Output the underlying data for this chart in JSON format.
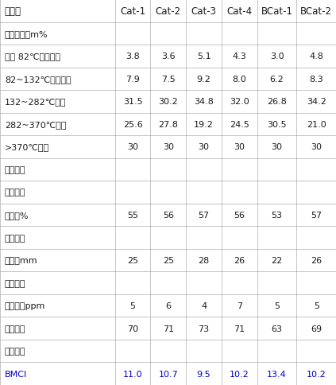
{
  "columns": [
    "催化剂",
    "Cat-1",
    "Cat-2",
    "Cat-3",
    "Cat-4",
    "BCat-1",
    "BCat-2"
  ],
  "rows": [
    {
      "label": "产品分布，m%",
      "values": [
        "",
        "",
        "",
        "",
        "",
        ""
      ],
      "section": true
    },
    {
      "label": "小于 82℃轻石脑油",
      "values": [
        "3.8",
        "3.6",
        "5.1",
        "4.3",
        "3.0",
        "4.8"
      ],
      "section": false
    },
    {
      "label": "82~132℃重石脑油",
      "values": [
        "7.9",
        "7.5",
        "9.2",
        "8.0",
        "6.2",
        "8.3"
      ],
      "section": false
    },
    {
      "label": "132~282℃航煤",
      "values": [
        "31.5",
        "30.2",
        "34.8",
        "32.0",
        "26.8",
        "34.2"
      ],
      "section": false
    },
    {
      "label": "282~370℃柴油",
      "values": [
        "25.6",
        "27.8",
        "19.2",
        "24.5",
        "30.5",
        "21.0"
      ],
      "section": false
    },
    {
      "label": ">370℃尾油",
      "values": [
        "30",
        "30",
        "30",
        "30",
        "30",
        "30"
      ],
      "section": false
    },
    {
      "label": "产品性质",
      "values": [
        "",
        "",
        "",
        "",
        "",
        ""
      ],
      "section": true
    },
    {
      "label": "重石脑油",
      "values": [
        "",
        "",
        "",
        "",
        "",
        ""
      ],
      "section": true
    },
    {
      "label": "芳潜，%",
      "values": [
        "55",
        "56",
        "57",
        "56",
        "53",
        "57"
      ],
      "section": false
    },
    {
      "label": "航煤馏分",
      "values": [
        "",
        "",
        "",
        "",
        "",
        ""
      ],
      "section": true
    },
    {
      "label": "烟点，mm",
      "values": [
        "25",
        "25",
        "28",
        "26",
        "22",
        "26"
      ],
      "section": false
    },
    {
      "label": "柴油馏分",
      "values": [
        "",
        "",
        "",
        "",
        "",
        ""
      ],
      "section": true
    },
    {
      "label": "硫含量，ppm",
      "values": [
        "5",
        "6",
        "4",
        "7",
        "5",
        "5"
      ],
      "section": false
    },
    {
      "label": "十六烷值",
      "values": [
        "70",
        "71",
        "73",
        "71",
        "63",
        "69"
      ],
      "section": false
    },
    {
      "label": "加氢尾油",
      "values": [
        "",
        "",
        "",
        "",
        "",
        ""
      ],
      "section": true
    },
    {
      "label": "BMCI",
      "values": [
        "11.0",
        "10.7",
        "9.5",
        "10.2",
        "13.4",
        "10.2"
      ],
      "section": false,
      "blue": true
    }
  ],
  "col_widths": [
    2.1,
    0.65,
    0.65,
    0.65,
    0.65,
    0.72,
    0.72
  ],
  "border_color": "#999999",
  "text_color": "#1a1a1a",
  "blue_text": "#0000cc",
  "font_size": 8.0,
  "header_font_size": 8.5,
  "line_width": 0.4
}
